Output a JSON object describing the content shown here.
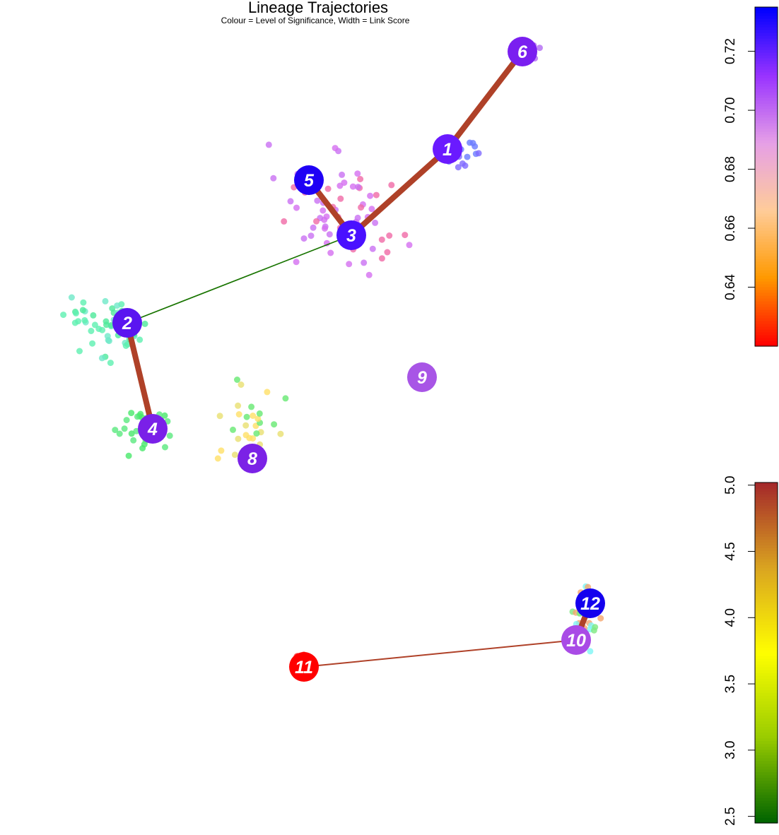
{
  "chart_data": {
    "type": "scatter",
    "title": "Lineage Trajectories",
    "subtitle": "Colour = Level of Significance, Width = Link Score",
    "colorbars": [
      {
        "name": "significance",
        "range": [
          0.62,
          0.735
        ],
        "ticks": [
          "0.64",
          "0.66",
          "0.68",
          "0.70",
          "0.72"
        ],
        "tick_values": [
          0.64,
          0.66,
          0.68,
          0.7,
          0.72
        ],
        "gradient": [
          "#ff0000",
          "#ff9900",
          "#ffcc99",
          "#e6a0e6",
          "#9933ff",
          "#0000ff"
        ]
      },
      {
        "name": "link-score",
        "range": [
          2.45,
          5.02
        ],
        "ticks": [
          "2.5",
          "3.0",
          "3.5",
          "4.0",
          "4.5",
          "5.0"
        ],
        "tick_values": [
          2.5,
          3.0,
          3.5,
          4.0,
          4.5,
          5.0
        ],
        "gradient": [
          "#006400",
          "#99cc00",
          "#ffff00",
          "#daa520",
          "#a52a2a"
        ]
      }
    ],
    "nodes": [
      {
        "id": "1",
        "color": "#6a1aff"
      },
      {
        "id": "2",
        "color": "#5a15f0"
      },
      {
        "id": "3",
        "color": "#4a10ff"
      },
      {
        "id": "4",
        "color": "#7a20e8"
      },
      {
        "id": "5",
        "color": "#1f00f5"
      },
      {
        "id": "6",
        "color": "#7a1ff0"
      },
      {
        "id": "8",
        "color": "#7b22e6"
      },
      {
        "id": "9",
        "color": "#a855e6"
      },
      {
        "id": "10",
        "color": "#a94be6"
      },
      {
        "id": "11",
        "color": "#ff0000"
      },
      {
        "id": "12",
        "color": "#1400ee"
      }
    ],
    "edges": [
      {
        "from": "1",
        "to": "6",
        "score": 4.9
      },
      {
        "from": "1",
        "to": "3",
        "score": 4.9
      },
      {
        "from": "5",
        "to": "3",
        "score": 4.9
      },
      {
        "from": "3",
        "to": "2",
        "score": 2.55
      },
      {
        "from": "2",
        "to": "4",
        "score": 4.9
      },
      {
        "from": "12",
        "to": "10",
        "score": 4.9
      },
      {
        "from": "10",
        "to": "11",
        "score": 4.9
      }
    ]
  }
}
